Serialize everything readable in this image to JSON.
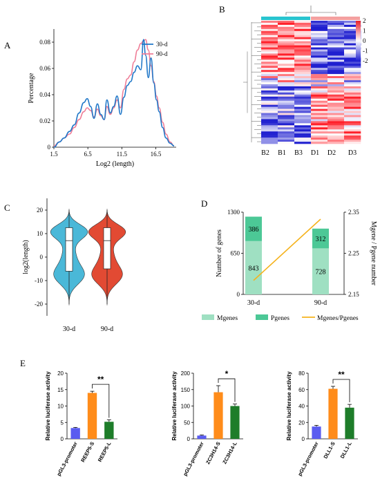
{
  "panels": {
    "A": {
      "letter": "A"
    },
    "B": {
      "letter": "B"
    },
    "C": {
      "letter": "C"
    },
    "D": {
      "letter": "D"
    },
    "E": {
      "letter": "E"
    }
  },
  "colors": {
    "blue": "#1f77c8",
    "pink": "#ef7d97",
    "cyan": "#29c4cf",
    "salmon": "#f4a0a0",
    "violin_blue": "#4ab8d8",
    "violin_red": "#e24a33",
    "mgenes": "#9fe0c2",
    "pgenes": "#4cc896",
    "ratio": "#f5b21b",
    "bar_blue": "#5a5cf0",
    "bar_orange": "#ff8c1a",
    "bar_green": "#1e7d2a"
  },
  "chart_data": [
    {
      "id": "A",
      "type": "line",
      "xlabel": "Log2 (length)",
      "ylabel": "Percentage",
      "xlim": [
        1.5,
        19.5
      ],
      "ylim": [
        0,
        0.09
      ],
      "x_ticks": [
        "1.5",
        "6.5",
        "11.5",
        "16.5"
      ],
      "y_ticks": [
        "0",
        "0.02",
        "0.04",
        "0.06",
        "0.08"
      ],
      "legend_position": "top-right",
      "series": [
        {
          "name": "30-d",
          "color": "#1f77c8",
          "x": [
            1.5,
            2.3,
            3.0,
            3.8,
            4.5,
            5.2,
            5.9,
            6.4,
            6.9,
            7.4,
            7.9,
            8.4,
            8.9,
            9.3,
            9.8,
            10.3,
            10.8,
            11.3,
            11.8,
            12.3,
            12.8,
            13.3,
            13.8,
            14.3,
            14.7,
            15.0,
            15.4,
            15.8,
            16.2,
            16.6,
            17.0,
            17.5,
            18.0,
            18.6,
            19.2
          ],
          "y": [
            0.0,
            0.004,
            0.007,
            0.012,
            0.017,
            0.026,
            0.034,
            0.037,
            0.031,
            0.022,
            0.033,
            0.025,
            0.021,
            0.036,
            0.026,
            0.031,
            0.039,
            0.025,
            0.038,
            0.047,
            0.05,
            0.057,
            0.062,
            0.059,
            0.082,
            0.07,
            0.053,
            0.068,
            0.049,
            0.036,
            0.027,
            0.015,
            0.007,
            0.003,
            0.001
          ]
        },
        {
          "name": "90-d",
          "color": "#ef7d97",
          "x": [
            1.5,
            2.3,
            3.0,
            3.8,
            4.5,
            5.2,
            5.9,
            6.4,
            6.9,
            7.4,
            7.9,
            8.4,
            8.9,
            9.3,
            9.8,
            10.3,
            10.8,
            11.3,
            11.8,
            12.3,
            12.8,
            13.3,
            13.8,
            14.3,
            14.7,
            15.0,
            15.4,
            15.8,
            16.2,
            16.6,
            17.0,
            17.5,
            18.0,
            18.6,
            19.2
          ],
          "y": [
            0.001,
            0.004,
            0.007,
            0.01,
            0.015,
            0.021,
            0.027,
            0.03,
            0.028,
            0.023,
            0.029,
            0.024,
            0.021,
            0.031,
            0.025,
            0.03,
            0.036,
            0.03,
            0.044,
            0.052,
            0.055,
            0.065,
            0.074,
            0.079,
            0.081,
            0.082,
            0.074,
            0.062,
            0.05,
            0.039,
            0.03,
            0.019,
            0.01,
            0.004,
            0.001
          ]
        }
      ]
    },
    {
      "id": "B",
      "type": "heatmap",
      "columns": [
        "B2",
        "B1",
        "B3",
        "D1",
        "D2",
        "D3"
      ],
      "column_groups": [
        {
          "columns": [
            "B2",
            "B1",
            "B3"
          ],
          "color": "#29c4cf"
        },
        {
          "columns": [
            "D1",
            "D2",
            "D3"
          ],
          "color": "#f4a0a0"
        }
      ],
      "color_scale": {
        "min": -2,
        "max": 2,
        "ticks": [
          "2",
          "1",
          "0",
          "-1",
          "-2"
        ],
        "low": "#2020d0",
        "mid": "#ffffff",
        "high": "#e8202a"
      },
      "rows": 60
    },
    {
      "id": "C",
      "type": "violin",
      "ylabel": "log2(length)",
      "ylim": [
        -25,
        25
      ],
      "y_ticks": [
        "20",
        "10",
        "0",
        "-10",
        "-20"
      ],
      "categories": [
        "30-d",
        "90-d"
      ],
      "series": [
        {
          "name": "30-d",
          "color": "#4ab8d8",
          "median": 7,
          "q1": -6,
          "q3": 12.5,
          "min": -20,
          "max": 20
        },
        {
          "name": "90-d",
          "color": "#e24a33",
          "median": 7,
          "q1": -5,
          "q3": 12.5,
          "min": -20,
          "max": 20
        }
      ]
    },
    {
      "id": "D",
      "type": "bar",
      "ylabel": "Number of genes",
      "y2label": "Mgene / Pgene number",
      "categories": [
        "30-d",
        "90-d"
      ],
      "ylim": [
        0,
        1300
      ],
      "y_ticks": [
        "0",
        "650",
        "1300"
      ],
      "y2lim": [
        2.15,
        2.35
      ],
      "y2_ticks": [
        "2.15",
        "2.25",
        "2.35"
      ],
      "series": [
        {
          "name": "Mgenes",
          "color": "#9fe0c2",
          "values": [
            843,
            728
          ]
        },
        {
          "name": "Pgenes",
          "color": "#4cc896",
          "values": [
            386,
            312
          ]
        },
        {
          "name": "Mgenes/Pgenes",
          "color": "#f5b21b",
          "type": "line",
          "axis": "right",
          "values": [
            2.184,
            2.333
          ]
        }
      ],
      "legend_position": "bottom"
    },
    {
      "id": "E1",
      "type": "bar",
      "ylabel": "Relative luciferase activity",
      "categories": [
        "pGL3-promoter",
        "REEP5-S",
        "REEP5-L"
      ],
      "values": [
        3.3,
        14.0,
        5.2
      ],
      "errors": [
        0.2,
        0.5,
        0.6
      ],
      "colors": [
        "#5a5cf0",
        "#ff8c1a",
        "#1e7d2a"
      ],
      "ylim": [
        0,
        20
      ],
      "y_ticks": [
        "0",
        "5",
        "10",
        "15",
        "20"
      ],
      "significance": {
        "between": [
          1,
          2
        ],
        "label": "**"
      }
    },
    {
      "id": "E2",
      "type": "bar",
      "ylabel": "Relative luciferase activity",
      "categories": [
        "pGL3-promoter",
        "ZC3H14-S",
        "ZC3H14-L"
      ],
      "values": [
        10,
        142,
        100
      ],
      "errors": [
        2,
        20,
        6
      ],
      "colors": [
        "#5a5cf0",
        "#ff8c1a",
        "#1e7d2a"
      ],
      "ylim": [
        0,
        200
      ],
      "y_ticks": [
        "0",
        "50",
        "100",
        "150",
        "200"
      ],
      "significance": {
        "between": [
          1,
          2
        ],
        "label": "*"
      }
    },
    {
      "id": "E3",
      "type": "bar",
      "ylabel": "Relative luciferase activity",
      "categories": [
        "pGL3-promoter",
        "DLL1-S",
        "DLL1-L"
      ],
      "values": [
        15,
        61,
        38
      ],
      "errors": [
        1.5,
        3,
        4
      ],
      "colors": [
        "#5a5cf0",
        "#ff8c1a",
        "#1e7d2a"
      ],
      "ylim": [
        0,
        80
      ],
      "y_ticks": [
        "0",
        "20",
        "40",
        "60",
        "80"
      ],
      "significance": {
        "between": [
          1,
          2
        ],
        "label": "**"
      }
    }
  ]
}
